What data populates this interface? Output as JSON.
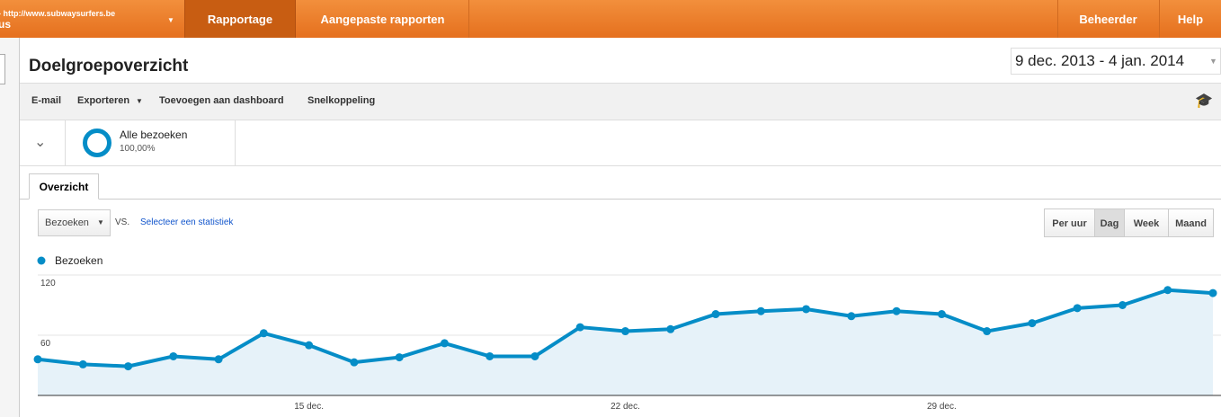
{
  "topbar": {
    "site": "- http://www.subwaysurfers.be",
    "site_sub": "us",
    "nav": [
      "Rapportage",
      "Aangepaste rapporten"
    ],
    "right": [
      "Beheerder",
      "Help"
    ]
  },
  "header": {
    "title": "Doelgroepoverzicht",
    "date_range": "9 dec. 2013 - 4 jan. 2014"
  },
  "toolbar": [
    "E-mail",
    "Exporteren",
    "Toevoegen aan dashboard",
    "Snelkoppeling"
  ],
  "segment": {
    "name": "Alle bezoeken",
    "share": "100,00%"
  },
  "tab": "Overzicht",
  "controls": {
    "metric": "Bezoeken",
    "vs": "VS.",
    "select": "Selecteer een statistiek",
    "periods": [
      "Per uur",
      "Dag",
      "Week",
      "Maand"
    ]
  },
  "chart_data": {
    "type": "line",
    "categories": [
      null,
      null,
      null,
      null,
      null,
      null,
      "15 dec.",
      null,
      null,
      null,
      null,
      null,
      null,
      "22 dec.",
      null,
      null,
      null,
      null,
      null,
      null,
      "29 dec.",
      null,
      null,
      null,
      null,
      null,
      null
    ],
    "series": [
      {
        "name": "Bezoeken",
        "color": "#058dc7",
        "values": [
          36,
          31,
          29,
          39,
          36,
          62,
          50,
          33,
          38,
          52,
          39,
          39,
          68,
          64,
          66,
          81,
          84,
          86,
          79,
          84,
          81,
          64,
          72,
          87,
          90,
          105,
          102
        ]
      }
    ],
    "ylim": [
      0,
      120
    ],
    "yticks": [
      60,
      120
    ],
    "grid": true
  }
}
